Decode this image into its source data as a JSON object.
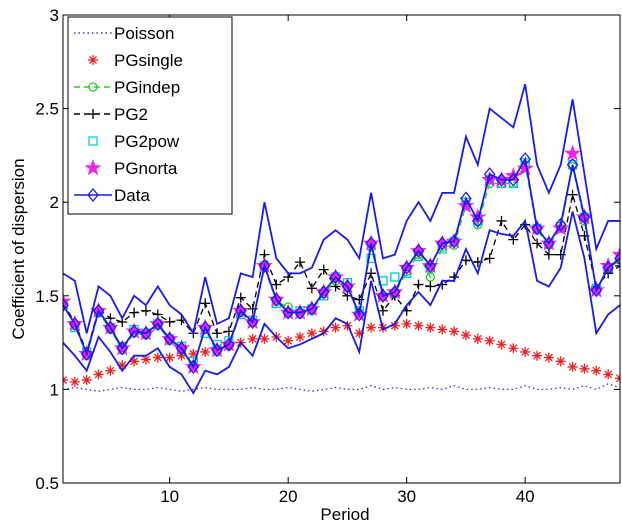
{
  "chart_data": {
    "type": "line",
    "xlabel": "Period",
    "ylabel": "Coefficient of dispersion",
    "xlim": [
      1,
      48
    ],
    "xticks": [
      10,
      20,
      30,
      40
    ],
    "ylim": [
      0.5,
      3
    ],
    "yticks": [
      0.5,
      1,
      1.5,
      2,
      2.5,
      3
    ],
    "legend": "upper-left",
    "x": [
      1,
      2,
      3,
      4,
      5,
      6,
      7,
      8,
      9,
      10,
      11,
      12,
      13,
      14,
      15,
      16,
      17,
      18,
      19,
      20,
      21,
      22,
      23,
      24,
      25,
      26,
      27,
      28,
      29,
      30,
      31,
      32,
      33,
      34,
      35,
      36,
      37,
      38,
      39,
      40,
      41,
      42,
      43,
      44,
      45,
      46,
      47,
      48
    ],
    "series": [
      {
        "name": "Poisson",
        "color": "#3333cc",
        "linestyle": "dotted",
        "marker": "none",
        "values": [
          1.0,
          1.01,
          1.0,
          0.99,
          1.0,
          1.01,
          1.0,
          1.0,
          1.01,
          1.0,
          0.99,
          1.0,
          1.01,
          1.0,
          1.0,
          1.0,
          1.01,
          1.0,
          1.0,
          1.01,
          1.0,
          0.99,
          1.0,
          1.01,
          1.0,
          1.0,
          1.02,
          1.0,
          1.01,
          1.0,
          1.0,
          1.01,
          1.0,
          1.02,
          1.0,
          1.0,
          1.01,
          1.0,
          1.0,
          1.02,
          1.0,
          1.0,
          1.01,
          1.0,
          1.02,
          1.0,
          1.03,
          1.01
        ]
      },
      {
        "name": "PGsingle",
        "color": "#ee2222",
        "linestyle": "none",
        "marker": "asterisk",
        "values": [
          1.05,
          1.04,
          1.05,
          1.08,
          1.1,
          1.13,
          1.15,
          1.16,
          1.17,
          1.17,
          1.18,
          1.19,
          1.2,
          1.22,
          1.23,
          1.25,
          1.27,
          1.27,
          1.28,
          1.26,
          1.28,
          1.3,
          1.31,
          1.33,
          1.34,
          1.3,
          1.33,
          1.33,
          1.34,
          1.35,
          1.34,
          1.33,
          1.32,
          1.31,
          1.29,
          1.27,
          1.26,
          1.24,
          1.22,
          1.2,
          1.18,
          1.17,
          1.15,
          1.12,
          1.11,
          1.1,
          1.08,
          1.06
        ]
      },
      {
        "name": "PGindep",
        "color": "#22cc22",
        "linestyle": "dashed",
        "marker": "circle",
        "values": [
          1.46,
          1.34,
          1.18,
          1.41,
          1.32,
          1.21,
          1.3,
          1.29,
          1.34,
          1.26,
          1.21,
          1.13,
          1.32,
          1.2,
          1.23,
          1.41,
          1.36,
          1.65,
          1.47,
          1.44,
          1.4,
          1.42,
          1.51,
          1.58,
          1.55,
          1.41,
          1.76,
          1.5,
          1.51,
          1.63,
          1.72,
          1.6,
          1.76,
          1.77,
          1.98,
          1.88,
          2.1,
          2.1,
          2.1,
          2.2,
          1.85,
          1.77,
          1.86,
          2.19,
          1.9,
          1.53,
          1.64,
          1.69
        ]
      },
      {
        "name": "PG2",
        "color": "#000000",
        "linestyle": "dashed",
        "marker": "plus",
        "values": [
          1.46,
          1.36,
          1.2,
          1.43,
          1.38,
          1.36,
          1.41,
          1.42,
          1.4,
          1.36,
          1.37,
          1.3,
          1.46,
          1.3,
          1.31,
          1.49,
          1.43,
          1.72,
          1.56,
          1.6,
          1.68,
          1.54,
          1.64,
          1.55,
          1.5,
          1.48,
          1.62,
          1.42,
          1.5,
          1.42,
          1.56,
          1.55,
          1.56,
          1.6,
          1.69,
          1.68,
          1.7,
          1.9,
          1.8,
          1.88,
          1.78,
          1.72,
          1.72,
          2.04,
          1.82,
          1.55,
          1.62,
          1.66
        ]
      },
      {
        "name": "PG2pow",
        "color": "#00cccc",
        "linestyle": "none",
        "marker": "square",
        "values": [
          1.45,
          1.33,
          1.2,
          1.41,
          1.33,
          1.23,
          1.32,
          1.3,
          1.35,
          1.27,
          1.23,
          1.15,
          1.3,
          1.24,
          1.26,
          1.4,
          1.37,
          1.66,
          1.46,
          1.41,
          1.42,
          1.43,
          1.5,
          1.6,
          1.57,
          1.42,
          1.7,
          1.58,
          1.6,
          1.62,
          1.71,
          1.65,
          1.75,
          1.79,
          2.0,
          1.9,
          2.12,
          2.1,
          2.1,
          2.21,
          1.86,
          1.78,
          1.87,
          2.2,
          1.92,
          1.54,
          1.65,
          1.7
        ]
      },
      {
        "name": "PGnorta",
        "color": "#ee22ee",
        "linestyle": "none",
        "marker": "star",
        "values": [
          1.47,
          1.35,
          1.19,
          1.42,
          1.33,
          1.22,
          1.31,
          1.3,
          1.35,
          1.27,
          1.22,
          1.12,
          1.33,
          1.21,
          1.24,
          1.42,
          1.36,
          1.66,
          1.48,
          1.41,
          1.41,
          1.43,
          1.52,
          1.6,
          1.55,
          1.4,
          1.78,
          1.5,
          1.52,
          1.65,
          1.74,
          1.66,
          1.78,
          1.79,
          1.98,
          1.92,
          2.12,
          2.12,
          2.14,
          2.18,
          1.86,
          1.78,
          1.86,
          2.26,
          1.92,
          1.53,
          1.66,
          1.72
        ]
      },
      {
        "name": "Data",
        "color": "#1a1aee",
        "linestyle": "solid",
        "marker": "diamond",
        "values": [
          1.45,
          1.35,
          1.19,
          1.42,
          1.33,
          1.22,
          1.31,
          1.3,
          1.35,
          1.27,
          1.22,
          1.12,
          1.33,
          1.21,
          1.24,
          1.42,
          1.36,
          1.66,
          1.48,
          1.41,
          1.41,
          1.43,
          1.52,
          1.6,
          1.55,
          1.4,
          1.78,
          1.5,
          1.52,
          1.65,
          1.74,
          1.66,
          1.78,
          1.79,
          2.02,
          1.9,
          2.15,
          2.12,
          2.12,
          2.23,
          1.86,
          1.78,
          1.88,
          2.2,
          1.92,
          1.53,
          1.65,
          1.7
        ]
      },
      {
        "color": "#1a1aee",
        "linestyle": "solid",
        "marker": "none",
        "values": [
          1.62,
          1.58,
          1.3,
          1.55,
          1.5,
          1.38,
          1.5,
          1.45,
          1.55,
          1.45,
          1.4,
          1.3,
          1.6,
          1.35,
          1.38,
          1.62,
          1.6,
          2.0,
          1.7,
          1.62,
          1.62,
          1.65,
          1.8,
          1.85,
          1.8,
          1.7,
          2.05,
          1.7,
          1.72,
          1.9,
          2.0,
          1.9,
          2.05,
          2.05,
          2.35,
          2.2,
          2.5,
          2.45,
          2.4,
          2.63,
          2.2,
          2.05,
          2.2,
          2.55,
          2.15,
          1.75,
          1.9,
          1.9
        ]
      },
      {
        "color": "#1a1aee",
        "linestyle": "solid",
        "marker": "none",
        "values": [
          1.25,
          1.18,
          1.1,
          1.28,
          1.2,
          1.1,
          1.18,
          1.18,
          1.22,
          1.12,
          1.08,
          0.98,
          1.1,
          1.08,
          1.12,
          1.25,
          1.18,
          1.35,
          1.28,
          1.22,
          1.24,
          1.27,
          1.3,
          1.38,
          1.35,
          1.2,
          1.58,
          1.32,
          1.35,
          1.45,
          1.52,
          1.45,
          1.58,
          1.58,
          1.75,
          1.62,
          1.85,
          1.83,
          1.82,
          1.9,
          1.58,
          1.55,
          1.65,
          1.95,
          1.7,
          1.3,
          1.4,
          1.45
        ]
      }
    ]
  }
}
